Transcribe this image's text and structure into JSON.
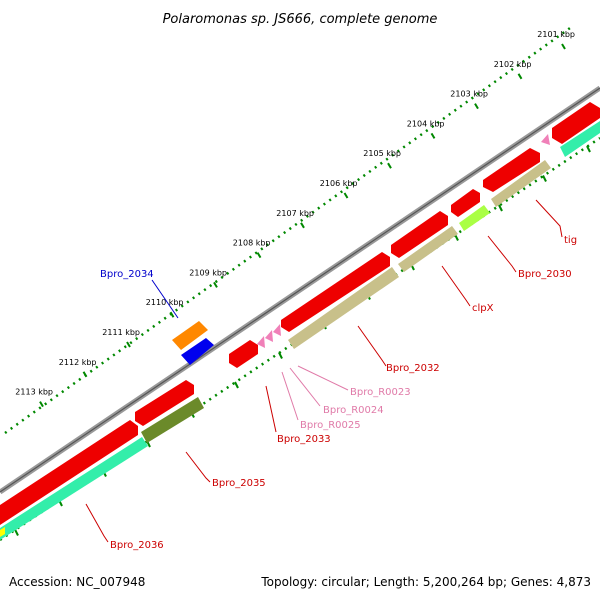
{
  "title": "Polaromonas sp. JS666, complete genome",
  "footer": {
    "accession": "Accession: NC_007948",
    "summary": "Topology: circular; Length: 5,200,264 bp; Genes: 4,873"
  },
  "scale_labels": [
    "2101 kbp",
    "2102 kbp",
    "2103 kbp",
    "2104 kbp",
    "2105 kbp",
    "2106 kbp",
    "2107 kbp",
    "2108 kbp",
    "2109 kbp",
    "2110 kbp",
    "2111 kbp",
    "2112 kbp",
    "2113 kbp"
  ],
  "gene_labels": [
    {
      "name": "tig",
      "color": "#cc0000"
    },
    {
      "name": "Bpro_2030",
      "color": "#cc0000"
    },
    {
      "name": "clpX",
      "color": "#cc0000"
    },
    {
      "name": "Bpro_2032",
      "color": "#cc0000"
    },
    {
      "name": "Bpro_R0023",
      "color": "#e07aa8"
    },
    {
      "name": "Bpro_R0024",
      "color": "#e07aa8"
    },
    {
      "name": "Bpro_R0025",
      "color": "#e07aa8"
    },
    {
      "name": "Bpro_2033",
      "color": "#cc0000"
    },
    {
      "name": "Bpro_2034",
      "color": "#0000cc"
    },
    {
      "name": "Bpro_2035",
      "color": "#cc0000"
    },
    {
      "name": "Bpro_2036",
      "color": "#cc0000"
    }
  ],
  "colors": {
    "cds": "#ee0000",
    "trna": "#f080b8",
    "olive_light": "#c8c08a",
    "olive_dark": "#6b8a2a",
    "lime": "#aaff44",
    "teal": "#33eeaa",
    "orange": "#ff8800",
    "blue": "#0000ee",
    "backbone": "#888888",
    "scale_dots": "#008800"
  }
}
